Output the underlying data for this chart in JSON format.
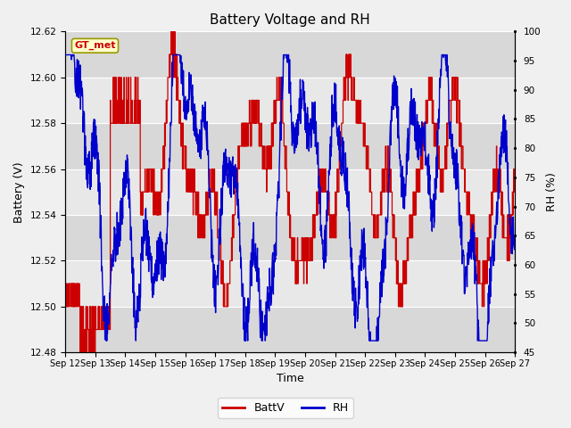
{
  "title": "Battery Voltage and RH",
  "xlabel": "Time",
  "ylabel_left": "Battery (V)",
  "ylabel_right": "RH (%)",
  "station_label": "GT_met",
  "ylim_left": [
    12.48,
    12.62
  ],
  "ylim_right": [
    45,
    100
  ],
  "yticks_left": [
    12.48,
    12.5,
    12.52,
    12.54,
    12.56,
    12.58,
    12.6,
    12.62
  ],
  "yticks_right": [
    45,
    50,
    55,
    60,
    65,
    70,
    75,
    80,
    85,
    90,
    95,
    100
  ],
  "x_tick_labels": [
    "Sep 12",
    "Sep 13",
    "Sep 14",
    "Sep 15",
    "Sep 16",
    "Sep 17",
    "Sep 18",
    "Sep 19",
    "Sep 20",
    "Sep 21",
    "Sep 22",
    "Sep 23",
    "Sep 24",
    "Sep 25",
    "Sep 26",
    "Sep 27"
  ],
  "color_batt": "#cc0000",
  "color_rh": "#0000cc",
  "bg_color": "#f0f0f0",
  "plot_bg_color": "#e8e8e8",
  "grid_color": "#ffffff",
  "legend_batt": "BattV",
  "legend_rh": "RH",
  "title_fontsize": 11,
  "label_fontsize": 9,
  "band_colors": [
    "#d8d8d8",
    "#e8e8e8"
  ],
  "band_edges_left": [
    12.48,
    12.5,
    12.52,
    12.54,
    12.56,
    12.58,
    12.6,
    12.62
  ]
}
